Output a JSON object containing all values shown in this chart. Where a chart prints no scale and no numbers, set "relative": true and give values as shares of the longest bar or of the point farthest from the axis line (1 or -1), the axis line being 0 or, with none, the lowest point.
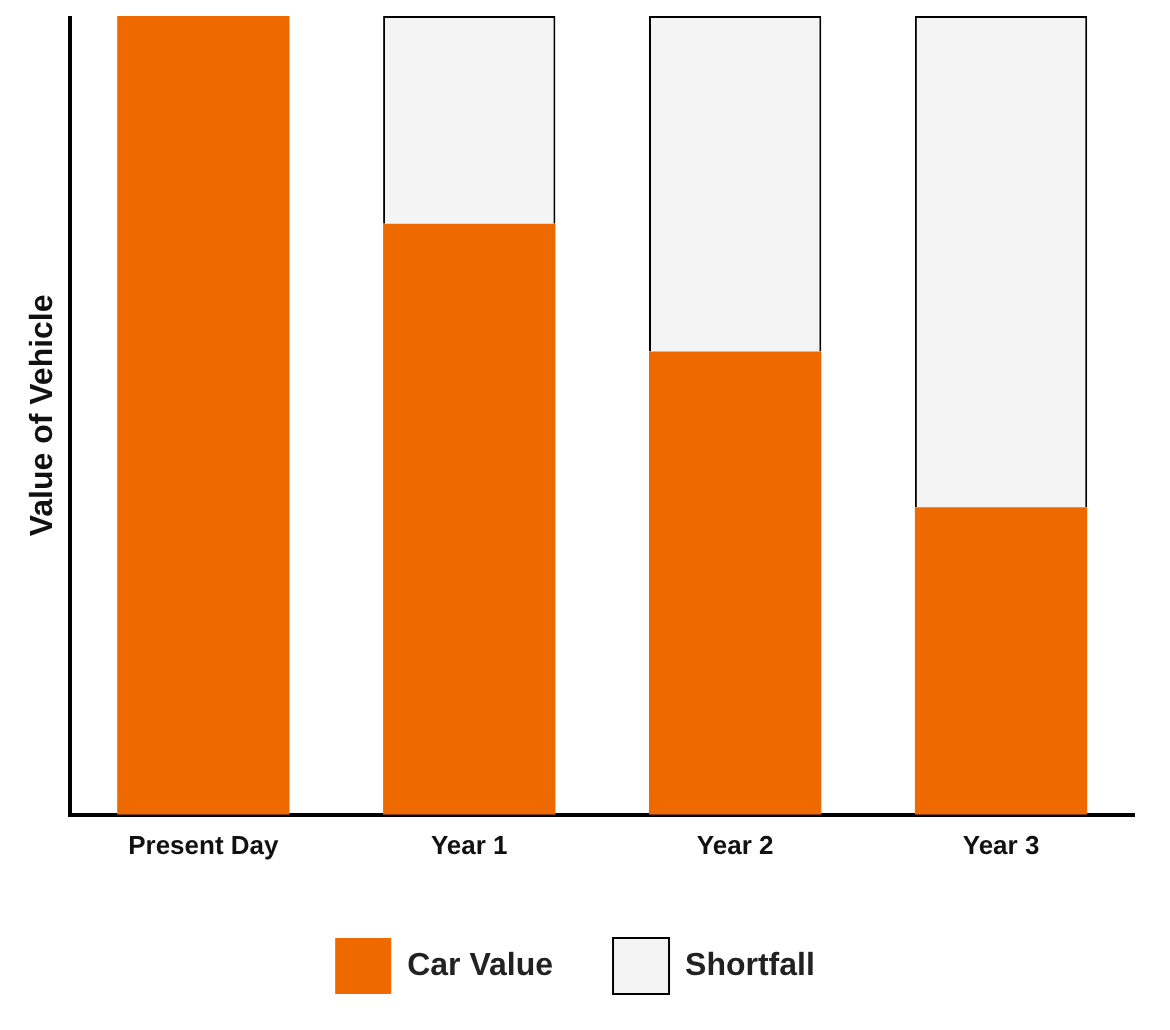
{
  "chart_data": {
    "type": "bar",
    "stacked": true,
    "relative": true,
    "ylabel": "Value of Vehicle",
    "categories": [
      "Present Day",
      "Year 1",
      "Year 2",
      "Year 3"
    ],
    "series": [
      {
        "name": "Car Value",
        "color": "#ee6a00",
        "values": [
          1,
          0.74,
          0.58,
          0.385
        ]
      },
      {
        "name": "Shortfall",
        "color": "#f4f4f4",
        "values": [
          0,
          0.26,
          0.42,
          0.615
        ]
      }
    ],
    "legend": "bottom",
    "grid": false
  }
}
